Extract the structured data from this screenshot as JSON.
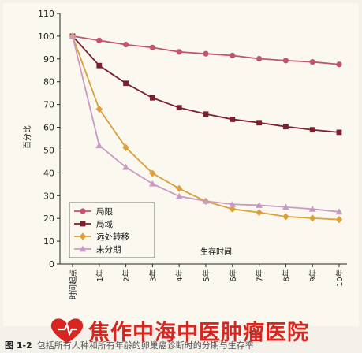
{
  "chart_data": {
    "type": "line",
    "ylabel": "百分比",
    "xlabel": "生存时间",
    "ylim": [
      0,
      110
    ],
    "yticks": [
      0,
      10,
      20,
      30,
      40,
      50,
      60,
      70,
      80,
      90,
      100,
      110
    ],
    "categories": [
      "时间起点",
      "1年",
      "2年",
      "3年",
      "4年",
      "5年",
      "6年",
      "7年",
      "8年",
      "9年",
      "10年"
    ],
    "grid": false,
    "legend_position": "bottom-left",
    "series": [
      {
        "name": "局限",
        "color": "#c2546f",
        "marker": "circle",
        "values": [
          100,
          98.1,
          96.3,
          95.0,
          93.1,
          92.3,
          91.5,
          90.1,
          89.3,
          88.7,
          87.6
        ]
      },
      {
        "name": "局域",
        "color": "#7a1f2e",
        "marker": "square",
        "values": [
          100,
          87.1,
          79.3,
          72.9,
          68.6,
          65.8,
          63.5,
          62.0,
          60.3,
          58.9,
          57.8
        ]
      },
      {
        "name": "远处转移",
        "color": "#dba03a",
        "marker": "diamond",
        "values": [
          100,
          68.0,
          51.1,
          39.8,
          33.1,
          27.5,
          24.1,
          22.6,
          20.8,
          20.1,
          19.5
        ]
      },
      {
        "name": "未分期",
        "color": "#c99ac4",
        "marker": "triangle",
        "values": [
          100,
          52.0,
          42.5,
          35.2,
          29.7,
          27.6,
          26.2,
          25.8,
          25.0,
          24.1,
          22.9
        ]
      }
    ]
  },
  "watermark": {
    "text": "焦作中海中医肿瘤医院"
  },
  "caption": {
    "number": "图 1-2",
    "text": "包括所有人种和所有年龄的卵巢癌诊断时的分期与生存率"
  }
}
